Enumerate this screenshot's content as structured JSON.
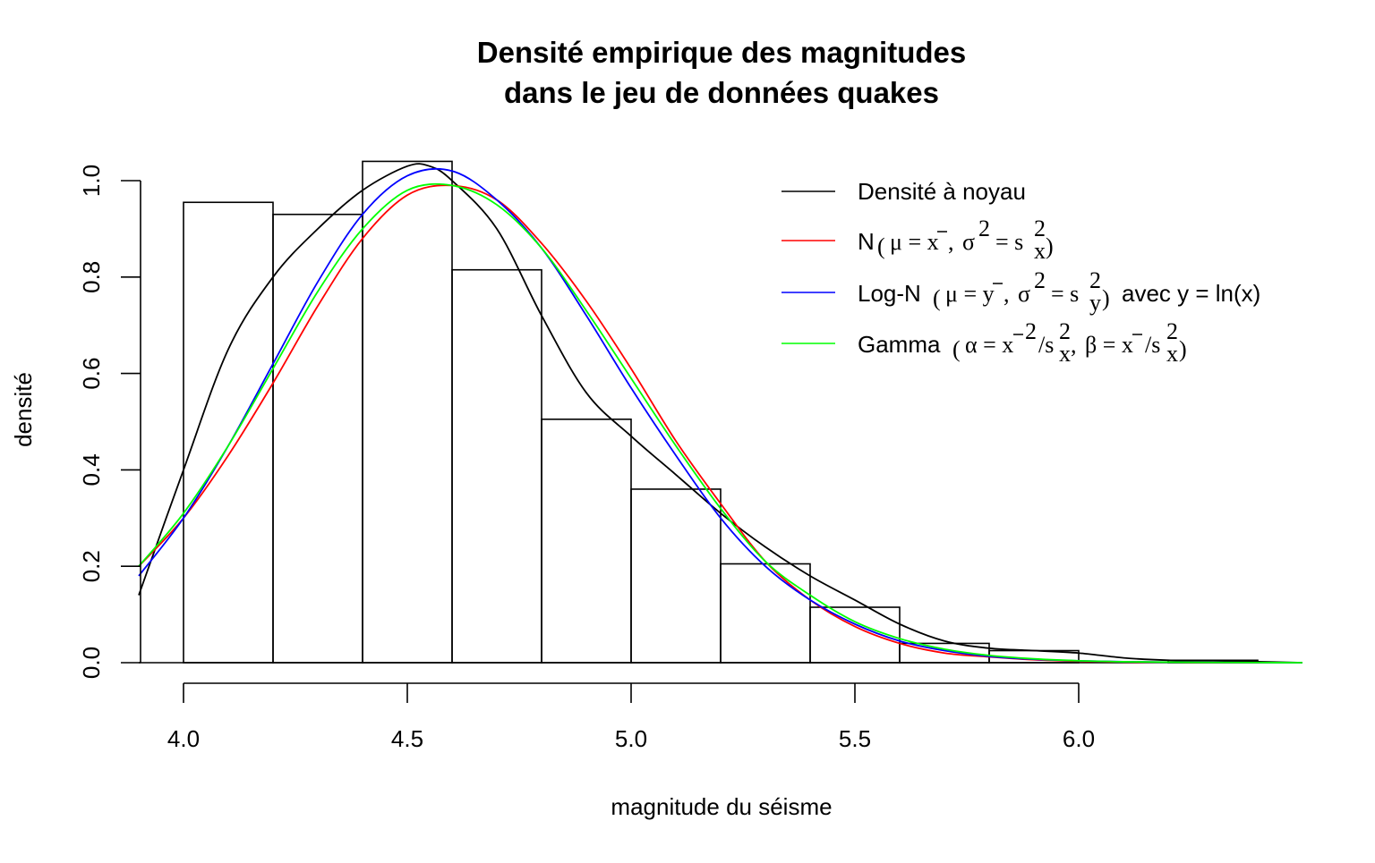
{
  "chart_data": {
    "type": "bar",
    "title_lines": [
      "Densité empirique des magnitudes",
      "dans le jeu de données quakes"
    ],
    "xlabel": "magnitude du séisme",
    "ylabel": "densité",
    "xlim": [
      3.9,
      6.5
    ],
    "ylim": [
      0,
      1.0
    ],
    "x_ticks": [
      4.0,
      4.5,
      5.0,
      5.5,
      6.0
    ],
    "x_tick_labels": [
      "4.0",
      "4.5",
      "5.0",
      "5.5",
      "6.0"
    ],
    "y_ticks": [
      0.0,
      0.2,
      0.4,
      0.6,
      0.8,
      1.0
    ],
    "y_tick_labels": [
      "0.0",
      "0.2",
      "0.4",
      "0.6",
      "0.8",
      "1.0"
    ],
    "histogram": {
      "breaks": [
        4.0,
        4.2,
        4.4,
        4.6,
        4.8,
        5.0,
        5.2,
        5.4,
        5.6,
        5.8,
        6.0,
        6.2,
        6.4
      ],
      "density": [
        0.955,
        0.93,
        1.04,
        0.815,
        0.505,
        0.36,
        0.205,
        0.115,
        0.04,
        0.025,
        0.0,
        0.005
      ]
    },
    "series": [
      {
        "name": "Densité à noyau",
        "color": "#000000",
        "x": [
          3.9,
          4.0,
          4.1,
          4.2,
          4.3,
          4.4,
          4.5,
          4.55,
          4.6,
          4.7,
          4.8,
          4.9,
          5.0,
          5.1,
          5.2,
          5.3,
          5.4,
          5.5,
          5.6,
          5.7,
          5.8,
          5.9,
          6.0,
          6.1,
          6.2,
          6.3,
          6.4,
          6.5
        ],
        "y": [
          0.14,
          0.4,
          0.65,
          0.8,
          0.9,
          0.98,
          1.03,
          1.03,
          1.0,
          0.9,
          0.72,
          0.56,
          0.47,
          0.39,
          0.31,
          0.24,
          0.18,
          0.13,
          0.08,
          0.045,
          0.03,
          0.025,
          0.02,
          0.01,
          0.005,
          0.004,
          0.002,
          0.0
        ]
      },
      {
        "name": "N(μ = x̄, σ² = s_x²)",
        "color": "#ff0000",
        "x": [
          3.9,
          4.0,
          4.1,
          4.2,
          4.3,
          4.4,
          4.5,
          4.6,
          4.7,
          4.8,
          4.9,
          5.0,
          5.1,
          5.2,
          5.3,
          5.4,
          5.5,
          5.6,
          5.7,
          5.8,
          5.9,
          6.0,
          6.1,
          6.2,
          6.3,
          6.4,
          6.5
        ],
        "y": [
          0.2,
          0.3,
          0.43,
          0.58,
          0.74,
          0.88,
          0.97,
          0.99,
          0.96,
          0.87,
          0.75,
          0.61,
          0.46,
          0.33,
          0.21,
          0.13,
          0.075,
          0.04,
          0.02,
          0.012,
          0.006,
          0.003,
          0.0015,
          0.0007,
          0.0003,
          0.0001,
          0.0
        ]
      },
      {
        "name": "Log-N(μ = ȳ, σ² = s_y²) avec y = ln(x)",
        "color": "#0000ff",
        "x": [
          3.9,
          4.0,
          4.1,
          4.2,
          4.3,
          4.4,
          4.5,
          4.6,
          4.7,
          4.8,
          4.9,
          5.0,
          5.1,
          5.2,
          5.3,
          5.4,
          5.5,
          5.6,
          5.7,
          5.8,
          5.9,
          6.0,
          6.1,
          6.2,
          6.3,
          6.4,
          6.5
        ],
        "y": [
          0.18,
          0.3,
          0.45,
          0.62,
          0.79,
          0.93,
          1.01,
          1.02,
          0.96,
          0.86,
          0.72,
          0.57,
          0.43,
          0.3,
          0.2,
          0.13,
          0.08,
          0.045,
          0.025,
          0.013,
          0.007,
          0.004,
          0.002,
          0.001,
          0.0005,
          0.0002,
          0.0
        ]
      },
      {
        "name": "Gamma(α = x̄²/s_x², β = x̄/s_x²)",
        "color": "#00ff00",
        "x": [
          3.9,
          4.0,
          4.1,
          4.2,
          4.3,
          4.4,
          4.5,
          4.6,
          4.7,
          4.8,
          4.9,
          5.0,
          5.1,
          5.2,
          5.3,
          5.4,
          5.5,
          5.6,
          5.7,
          5.8,
          5.9,
          6.0,
          6.1,
          6.2,
          6.3,
          6.4,
          6.5
        ],
        "y": [
          0.2,
          0.31,
          0.45,
          0.61,
          0.77,
          0.9,
          0.98,
          0.99,
          0.95,
          0.86,
          0.73,
          0.59,
          0.45,
          0.32,
          0.21,
          0.14,
          0.085,
          0.05,
          0.028,
          0.015,
          0.008,
          0.004,
          0.002,
          0.001,
          0.0005,
          0.0002,
          0.0
        ]
      }
    ],
    "legend": {
      "placement": "top-right",
      "entries": [
        {
          "label_text": "Densité à noyau",
          "color": "#000000"
        },
        {
          "color": "#ff0000"
        },
        {
          "color": "#0000ff"
        },
        {
          "color": "#00ff00"
        }
      ]
    }
  },
  "legend_math": {
    "normal": {
      "prefix": "N",
      "mu_eq": "μ = x",
      "sigma": "σ",
      "eq": "= s",
      "sub": "x",
      "sup": "2"
    },
    "lognormal": {
      "prefix": "Log-N",
      "mu_eq": "μ = y",
      "sigma": "σ",
      "eq": "= s",
      "sub": "y",
      "sup": "2",
      "suffix": "avec y = ln(x)"
    },
    "gamma": {
      "prefix": "Gamma",
      "alpha_eq": "α = x",
      "beta_eq": "β = x",
      "sub": "x",
      "sup": "2"
    }
  }
}
